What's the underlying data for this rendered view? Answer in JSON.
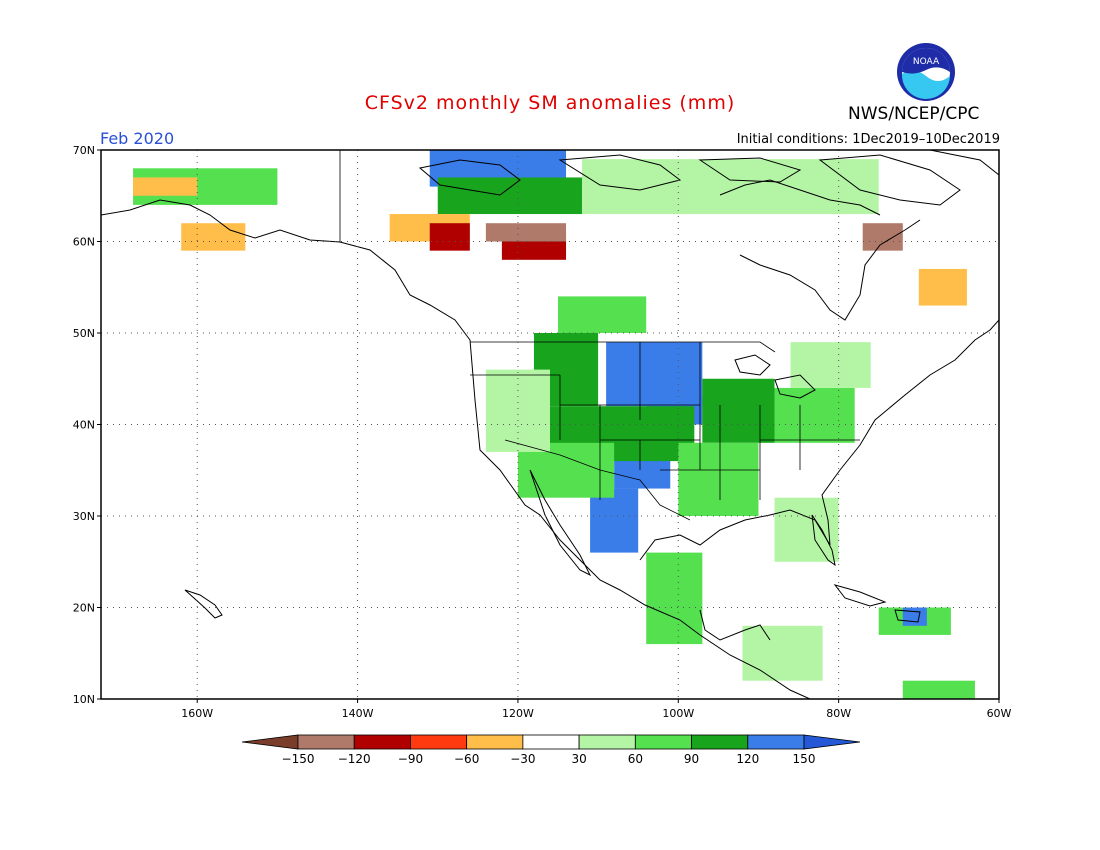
{
  "title": "CFSv2 monthly SM anomalies (mm)",
  "valid_month": "Feb 2020",
  "initial_conditions": "Initial conditions: 1Dec2019–10Dec2019",
  "agency": "NWS/NCEP/CPC",
  "logo_text": "NOAA",
  "map": {
    "lon_range": [
      -172,
      -60
    ],
    "lat_range": [
      10,
      70
    ],
    "lat_ticks": [
      {
        "value": 70,
        "label": "70N"
      },
      {
        "value": 60,
        "label": "60N"
      },
      {
        "value": 50,
        "label": "50N"
      },
      {
        "value": 40,
        "label": "40N"
      },
      {
        "value": 30,
        "label": "30N"
      },
      {
        "value": 20,
        "label": "20N"
      },
      {
        "value": 10,
        "label": "10N"
      }
    ],
    "lon_ticks": [
      {
        "value": -160,
        "label": "160W"
      },
      {
        "value": -140,
        "label": "140W"
      },
      {
        "value": -120,
        "label": "120W"
      },
      {
        "value": -100,
        "label": "100W"
      },
      {
        "value": -80,
        "label": "80W"
      },
      {
        "value": -60,
        "label": "60W"
      }
    ],
    "grid": true,
    "colorbar": {
      "bins": [
        {
          "color": "#7a3d2a"
        },
        {
          "color": "#b07a6a"
        },
        {
          "color": "#b00000"
        },
        {
          "color": "#ff3a10"
        },
        {
          "color": "#ffbe4a"
        },
        {
          "color": "#ffffff"
        },
        {
          "color": "#b4f5a5"
        },
        {
          "color": "#55e050"
        },
        {
          "color": "#18a41c"
        },
        {
          "color": "#3a7ce8"
        },
        {
          "color": "#2458d6"
        }
      ],
      "labels": [
        "−150",
        "−120",
        "−90",
        "−60",
        "−30",
        "30",
        "60",
        "90",
        "120",
        "150"
      ]
    },
    "regions": [
      {
        "category": 9,
        "lon": [
          -109,
          -97
        ],
        "lat": [
          42,
          49
        ]
      },
      {
        "category": 9,
        "lon": [
          -104,
          -97
        ],
        "lat": [
          40,
          43
        ]
      },
      {
        "category": 9,
        "lon": [
          -108,
          -101
        ],
        "lat": [
          33,
          37
        ]
      },
      {
        "category": 9,
        "lon": [
          -111,
          -105
        ],
        "lat": [
          26,
          33
        ]
      },
      {
        "category": 9,
        "lon": [
          -131,
          -114
        ],
        "lat": [
          66,
          70
        ]
      },
      {
        "category": 8,
        "lon": [
          -116,
          -98
        ],
        "lat": [
          36,
          42
        ]
      },
      {
        "category": 8,
        "lon": [
          -97,
          -88
        ],
        "lat": [
          38,
          45
        ]
      },
      {
        "category": 8,
        "lon": [
          -118,
          -110
        ],
        "lat": [
          42,
          50
        ]
      },
      {
        "category": 8,
        "lon": [
          -130,
          -112
        ],
        "lat": [
          63,
          67
        ]
      },
      {
        "category": 7,
        "lon": [
          -120,
          -108
        ],
        "lat": [
          32,
          38
        ]
      },
      {
        "category": 7,
        "lon": [
          -100,
          -90
        ],
        "lat": [
          30,
          38
        ]
      },
      {
        "category": 7,
        "lon": [
          -88,
          -78
        ],
        "lat": [
          38,
          44
        ]
      },
      {
        "category": 7,
        "lon": [
          -104,
          -97
        ],
        "lat": [
          16,
          26
        ]
      },
      {
        "category": 7,
        "lon": [
          -115,
          -104
        ],
        "lat": [
          50,
          54
        ]
      },
      {
        "category": 7,
        "lon": [
          -168,
          -150
        ],
        "lat": [
          64,
          68
        ]
      },
      {
        "category": 6,
        "lon": [
          -112,
          -75
        ],
        "lat": [
          63,
          69
        ]
      },
      {
        "category": 6,
        "lon": [
          -86,
          -76
        ],
        "lat": [
          44,
          49
        ]
      },
      {
        "category": 6,
        "lon": [
          -124,
          -116
        ],
        "lat": [
          37,
          46
        ]
      },
      {
        "category": 6,
        "lon": [
          -88,
          -80
        ],
        "lat": [
          25,
          32
        ]
      },
      {
        "category": 6,
        "lon": [
          -92,
          -82
        ],
        "lat": [
          12,
          18
        ]
      },
      {
        "category": 4,
        "lon": [
          -136,
          -126
        ],
        "lat": [
          60,
          63
        ]
      },
      {
        "category": 4,
        "lon": [
          -70,
          -64
        ],
        "lat": [
          53,
          57
        ]
      },
      {
        "category": 4,
        "lon": [
          -162,
          -154
        ],
        "lat": [
          59,
          62
        ]
      },
      {
        "category": 4,
        "lon": [
          -168,
          -160
        ],
        "lat": [
          65,
          67
        ]
      },
      {
        "category": 2,
        "lon": [
          -122,
          -114
        ],
        "lat": [
          58,
          61
        ]
      },
      {
        "category": 2,
        "lon": [
          -131,
          -126
        ],
        "lat": [
          59,
          62
        ]
      },
      {
        "category": 1,
        "lon": [
          -124,
          -114
        ],
        "lat": [
          60,
          62
        ]
      },
      {
        "category": 1,
        "lon": [
          -77,
          -72
        ],
        "lat": [
          59,
          62
        ]
      },
      {
        "category": 7,
        "lon": [
          -75,
          -66
        ],
        "lat": [
          17,
          20
        ]
      },
      {
        "category": 9,
        "lon": [
          -72,
          -69
        ],
        "lat": [
          18,
          20
        ]
      },
      {
        "category": 7,
        "lon": [
          -72,
          -63
        ],
        "lat": [
          10,
          12
        ]
      }
    ]
  }
}
